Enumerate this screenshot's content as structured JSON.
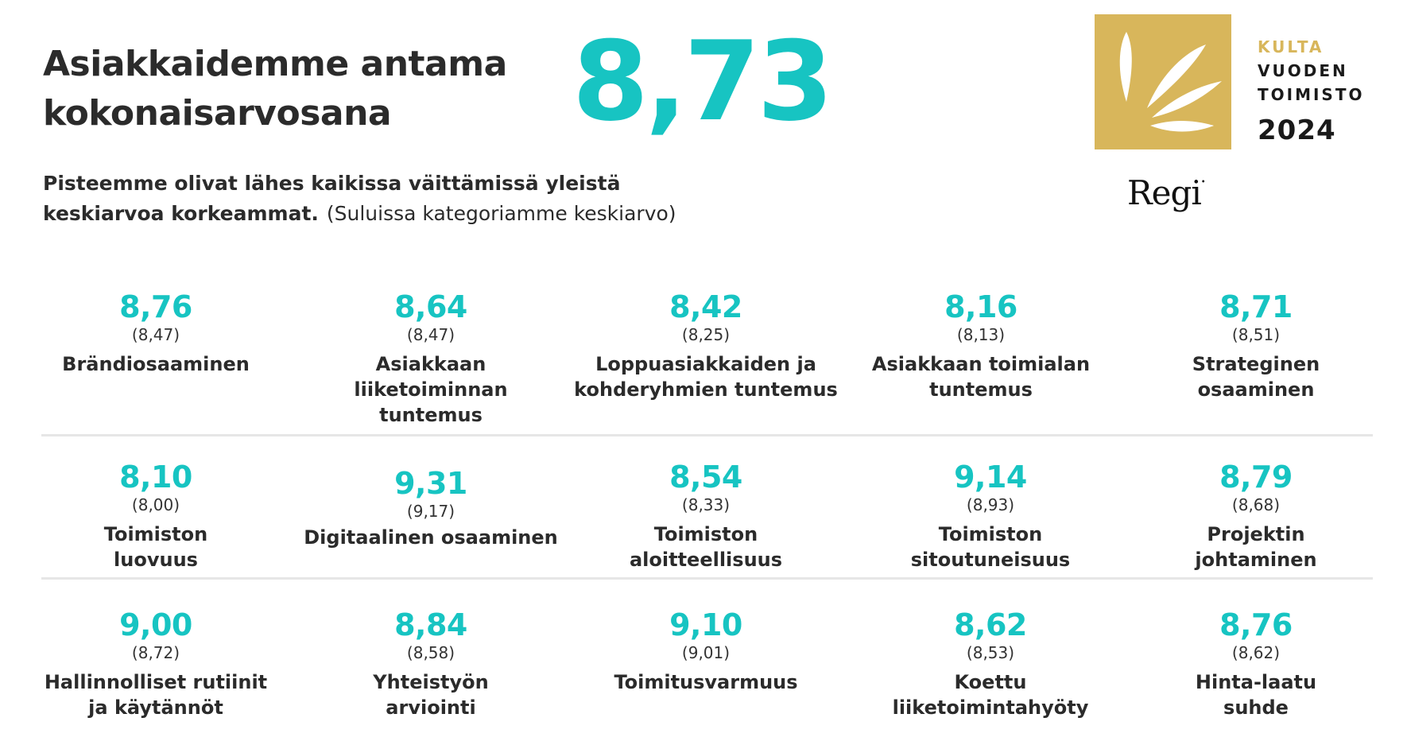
{
  "header": {
    "title_line1": "Asiakkaidemme antama",
    "title_line2": "kokonaisarvosana",
    "overall_score": "8,73",
    "subtitle_line1": "Pisteemme olivat lähes kaikissa väittämissä yleistä",
    "subtitle_line2_bold": "keskiarvoa korkeammat.",
    "subtitle_note": "(Suluissa kategoriamme keskiarvo)"
  },
  "award": {
    "kulta": "KULTA",
    "line1": "VUODEN",
    "line2": "TOIMISTO",
    "year": "2024",
    "brand": "Regi",
    "badge_color": "#d8b65b"
  },
  "colors": {
    "accent": "#17c4c2",
    "gold": "#d8b65b",
    "text": "#2b2b2b"
  },
  "metrics": [
    {
      "score": "8,76",
      "avg": "(8,47)",
      "label1": "Brändiosaaminen",
      "label2": ""
    },
    {
      "score": "8,64",
      "avg": "(8,47)",
      "label1": "Asiakkaan liiketoiminnan",
      "label2": "tuntemus"
    },
    {
      "score": "8,42",
      "avg": "(8,25)",
      "label1": "Loppuasiakkaiden ja",
      "label2": "kohderyhmien tuntemus"
    },
    {
      "score": "8,16",
      "avg": "(8,13)",
      "label1": "Asiakkaan toimialan",
      "label2": "tuntemus"
    },
    {
      "score": "8,71",
      "avg": "(8,51)",
      "label1": "Strateginen",
      "label2": "osaaminen"
    },
    {
      "score": "8,10",
      "avg": "(8,00)",
      "label1": "Toimiston",
      "label2": "luovuus"
    },
    {
      "score": "9,31",
      "avg": "(9,17)",
      "label1": "Digitaalinen osaaminen",
      "label2": ""
    },
    {
      "score": "8,54",
      "avg": "(8,33)",
      "label1": "Toimiston",
      "label2": "aloitteellisuus"
    },
    {
      "score": "9,14",
      "avg": "(8,93)",
      "label1": "Toimiston",
      "label2": "sitoutuneisuus"
    },
    {
      "score": "8,79",
      "avg": "(8,68)",
      "label1": "Projektin",
      "label2": "johtaminen"
    },
    {
      "score": "9,00",
      "avg": "(8,72)",
      "label1": "Hallinnolliset rutiinit",
      "label2": "ja käytännöt"
    },
    {
      "score": "8,84",
      "avg": "(8,58)",
      "label1": "Yhteistyön",
      "label2": "arviointi"
    },
    {
      "score": "9,10",
      "avg": "(9,01)",
      "label1": "Toimitusvarmuus",
      "label2": ""
    },
    {
      "score": "8,62",
      "avg": "(8,53)",
      "label1": "Koettu",
      "label2": "liiketoimintahyöty"
    },
    {
      "score": "8,76",
      "avg": "(8,62)",
      "label1": "Hinta-laatu",
      "label2": "suhde"
    }
  ]
}
